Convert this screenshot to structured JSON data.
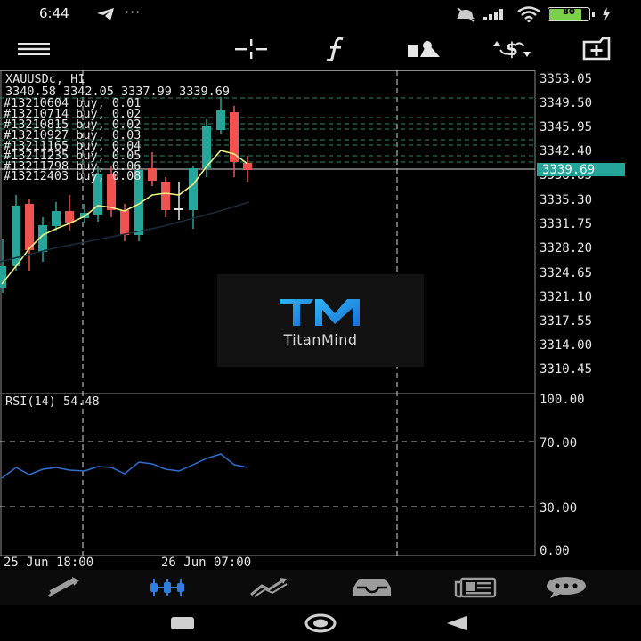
{
  "status_bar": {
    "time": "6:44",
    "dots": "···",
    "battery_level": "80"
  },
  "toolbar": {
    "items": [
      "menu-icon",
      "crosshair-icon",
      "indicators-icon",
      "objects-icon",
      "trade-icon",
      "add-window-icon"
    ]
  },
  "chart": {
    "symbol": "XAUUSDc, H1",
    "ohlc": "3340.58 3342.05 3337.99 3339.69",
    "positions": [
      "#13210604 buy, 0.01",
      "#13210714 buy, 0.02",
      "#13210815 buy, 0.02",
      "#13210927 buy, 0.03",
      "#13211165 buy, 0.04",
      "#13211235 buy, 0.05",
      "#13211798 buy, 0.06",
      "#13212403 buy, 0.08"
    ],
    "current_price": "3339.69",
    "price_axis": [
      "3353.05",
      "3349.50",
      "3345.95",
      "3342.40",
      "3338.85",
      "3335.30",
      "3331.75",
      "3328.20",
      "3324.65",
      "3321.10",
      "3317.55",
      "3314.00",
      "3310.45"
    ],
    "rsi_label": "RSI(14) 54.48",
    "rsi_axis": [
      "100.00",
      "70.00",
      "30.00",
      "0.00"
    ],
    "time_axis": [
      "25 Jun 18:00",
      "26 Jun 07:00"
    ],
    "colors": {
      "bull": "#26a69a",
      "bear": "#ef5350",
      "ma": "#f0f080",
      "rsi": "#2f6fd0",
      "price_tag": "#26a69a"
    }
  },
  "watermark": {
    "logo_text": "TM",
    "name": "TitanMind"
  },
  "bottom_tabs": {
    "items": [
      "quotes-icon",
      "chart-tab-icon",
      "trade-tab-icon",
      "history-icon",
      "news-icon",
      "messages-icon"
    ],
    "active": 1
  },
  "nav_bar": {
    "items": [
      "recent-apps-icon",
      "home-icon",
      "back-icon"
    ]
  }
}
